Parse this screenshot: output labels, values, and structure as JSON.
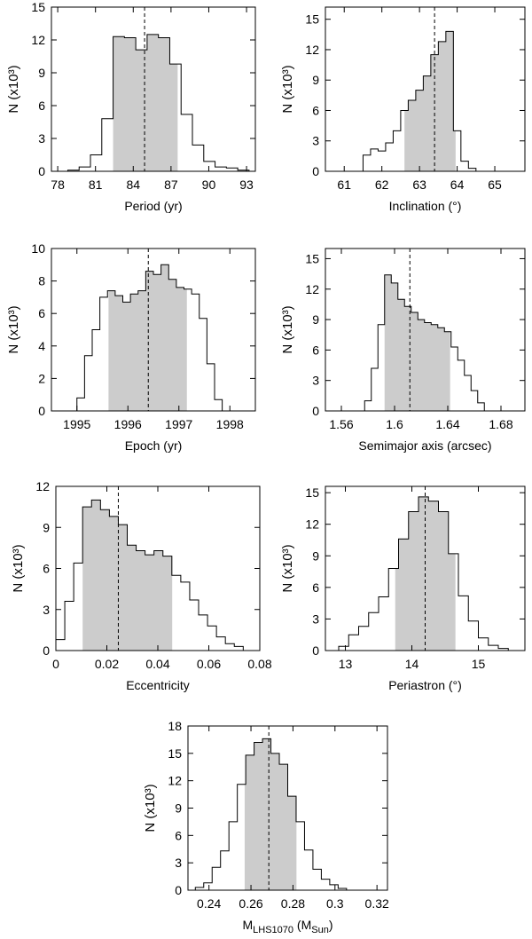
{
  "ylabel": "N (x10³)",
  "chart_data": [
    {
      "type": "bar",
      "xlabel": "Period (yr)",
      "ylabel": "N (x10³)",
      "xlim": [
        77.5,
        93.7
      ],
      "ylim": [
        0,
        15
      ],
      "xticks": [
        78,
        81,
        84,
        87,
        90,
        93
      ],
      "xtick_labels": [
        "78",
        "81",
        "84",
        "87",
        "90",
        "93"
      ],
      "yticks": [
        0,
        3,
        6,
        9,
        12,
        15
      ],
      "ytick_labels": [
        "0",
        "3",
        "6",
        "9",
        "12",
        "15"
      ],
      "bin_edges": [
        78.8,
        79.7,
        80.6,
        81.5,
        82.4,
        83.3,
        84.2,
        85.1,
        86.0,
        86.9,
        87.8,
        88.7,
        89.6,
        90.5,
        91.4,
        92.3,
        93.2
      ],
      "values": [
        0.1,
        0.4,
        1.5,
        4.8,
        12.3,
        12.2,
        11.1,
        12.5,
        12.2,
        9.8,
        5.2,
        2.4,
        0.9,
        0.4,
        0.3,
        0.1
      ],
      "shade_range": [
        82.4,
        87.5
      ],
      "median": 84.9
    },
    {
      "type": "bar",
      "xlabel": "Inclination (°)",
      "ylabel": "N (x10³)",
      "xlim": [
        60.5,
        65.8
      ],
      "ylim": [
        0,
        16.2
      ],
      "xticks": [
        61,
        62,
        63,
        64,
        65
      ],
      "xtick_labels": [
        "61",
        "62",
        "63",
        "64",
        "65"
      ],
      "yticks": [
        0,
        3,
        6,
        9,
        12,
        15
      ],
      "ytick_labels": [
        "0",
        "3",
        "6",
        "9",
        "12",
        "15"
      ],
      "bin_edges": [
        61.5,
        61.7,
        61.9,
        62.1,
        62.3,
        62.5,
        62.7,
        62.9,
        63.1,
        63.3,
        63.5,
        63.7,
        63.9,
        64.1,
        64.3,
        64.5
      ],
      "values": [
        1.6,
        2.2,
        2.0,
        2.8,
        4.0,
        6.0,
        7.0,
        8.0,
        9.4,
        11.5,
        12.8,
        13.8,
        4.0,
        1.0,
        0.3
      ],
      "shade_range": [
        62.6,
        63.95
      ],
      "median": 63.4
    },
    {
      "type": "bar",
      "xlabel": "Epoch (yr)",
      "ylabel": "N (x10³)",
      "xlim": [
        1994.5,
        1998.5
      ],
      "ylim": [
        0,
        10
      ],
      "xticks": [
        1995,
        1996,
        1997,
        1998
      ],
      "xtick_labels": [
        "1995",
        "1996",
        "1997",
        "1998"
      ],
      "yticks": [
        0,
        2,
        4,
        6,
        8,
        10
      ],
      "ytick_labels": [
        "0",
        "2",
        "4",
        "6",
        "8",
        "10"
      ],
      "bin_edges": [
        1995.0,
        1995.15,
        1995.3,
        1995.45,
        1995.6,
        1995.75,
        1995.9,
        1996.05,
        1996.2,
        1996.35,
        1996.5,
        1996.65,
        1996.8,
        1996.95,
        1997.1,
        1997.25,
        1997.4,
        1997.55,
        1997.7,
        1997.85
      ],
      "values": [
        0.8,
        3.4,
        5.0,
        7.0,
        7.4,
        7.1,
        6.7,
        7.2,
        7.4,
        8.6,
        8.4,
        9.0,
        8.1,
        7.6,
        7.5,
        7.2,
        5.7,
        2.9,
        0.7
      ],
      "shade_range": [
        1995.62,
        1997.15
      ],
      "median": 1996.4
    },
    {
      "type": "bar",
      "xlabel": "Semimajor axis (arcsec)",
      "ylabel": "N (x10³)",
      "xlim": [
        1.548,
        1.698
      ],
      "ylim": [
        0,
        16
      ],
      "xticks": [
        1.56,
        1.6,
        1.64,
        1.68
      ],
      "xtick_labels": [
        "1.56",
        "1.6",
        "1.64",
        "1.68"
      ],
      "yticks": [
        0,
        3,
        6,
        9,
        12,
        15
      ],
      "ytick_labels": [
        "0",
        "3",
        "6",
        "9",
        "12",
        "15"
      ],
      "bin_edges": [
        1.5775,
        1.5825,
        1.5875,
        1.5925,
        1.5975,
        1.6025,
        1.6075,
        1.6125,
        1.6175,
        1.6225,
        1.6275,
        1.6325,
        1.6375,
        1.6425,
        1.6475,
        1.6525,
        1.6575,
        1.6625,
        1.6675
      ],
      "values": [
        1.0,
        4.2,
        8.5,
        13.4,
        12.6,
        11.0,
        10.3,
        9.7,
        9.0,
        8.7,
        8.5,
        8.2,
        7.8,
        6.3,
        5.0,
        3.5,
        2.0,
        0.8
      ],
      "shade_range": [
        1.5925,
        1.6415
      ],
      "median": 1.6115
    },
    {
      "type": "bar",
      "xlabel": "Eccentricity",
      "ylabel": "N (x10³)",
      "xlim": [
        0,
        0.08
      ],
      "ylim": [
        0,
        12
      ],
      "xticks": [
        0,
        0.02,
        0.04,
        0.06,
        0.08
      ],
      "xtick_labels": [
        "0",
        "0.02",
        "0.04",
        "0.06",
        "0.08"
      ],
      "yticks": [
        0,
        3,
        6,
        9,
        12
      ],
      "ytick_labels": [
        "0",
        "3",
        "6",
        "9",
        "12"
      ],
      "bin_edges": [
        0.0,
        0.0035,
        0.007,
        0.0105,
        0.014,
        0.0175,
        0.021,
        0.0245,
        0.028,
        0.0315,
        0.035,
        0.0385,
        0.042,
        0.0455,
        0.049,
        0.0525,
        0.056,
        0.0595,
        0.063,
        0.0665,
        0.07,
        0.0735
      ],
      "values": [
        0.8,
        3.6,
        6.4,
        10.5,
        11.0,
        10.3,
        9.8,
        9.2,
        7.7,
        7.3,
        7.0,
        7.3,
        6.9,
        5.5,
        5.0,
        3.7,
        2.6,
        1.8,
        1.0,
        0.5,
        0.3
      ],
      "shade_range": [
        0.0105,
        0.0455
      ],
      "median": 0.0245
    },
    {
      "type": "bar",
      "xlabel": "Periastron (°)",
      "ylabel": "N (x10³)",
      "xlim": [
        12.7,
        15.7
      ],
      "ylim": [
        0,
        15.6
      ],
      "xticks": [
        13,
        14,
        15
      ],
      "xtick_labels": [
        "13",
        "14",
        "15"
      ],
      "yticks": [
        0,
        3,
        6,
        9,
        12,
        15
      ],
      "ytick_labels": [
        "0",
        "3",
        "6",
        "9",
        "12",
        "15"
      ],
      "bin_edges": [
        12.9,
        13.05,
        13.2,
        13.35,
        13.5,
        13.65,
        13.8,
        13.95,
        14.1,
        14.25,
        14.4,
        14.55,
        14.7,
        14.85,
        15.0,
        15.15,
        15.3,
        15.45
      ],
      "values": [
        0.4,
        1.5,
        2.3,
        3.6,
        5.1,
        7.8,
        10.6,
        13.2,
        14.6,
        14.2,
        13.2,
        9.2,
        5.2,
        2.8,
        1.2,
        0.5,
        0.2
      ],
      "shade_range": [
        13.75,
        14.65
      ],
      "median": 14.2
    },
    {
      "type": "bar",
      "xlabel": "M",
      "xlabel_sub": "LHS1070",
      "xlabel_mid": " (M",
      "xlabel_sub2": "Sun",
      "xlabel_end": ")",
      "ylabel": "N (x10³)",
      "xlim": [
        0.23,
        0.325
      ],
      "ylim": [
        0,
        18
      ],
      "xticks": [
        0.24,
        0.26,
        0.28,
        0.3,
        0.32
      ],
      "xtick_labels": [
        "0.24",
        "0.26",
        "0.28",
        "0.3",
        "0.32"
      ],
      "yticks": [
        0,
        3,
        6,
        9,
        12,
        15,
        18
      ],
      "ytick_labels": [
        "0",
        "3",
        "6",
        "9",
        "12",
        "15",
        "18"
      ],
      "bin_edges": [
        0.2335,
        0.2375,
        0.2415,
        0.2455,
        0.2495,
        0.2535,
        0.2575,
        0.2615,
        0.2655,
        0.2695,
        0.2735,
        0.2775,
        0.2815,
        0.2855,
        0.2895,
        0.2935,
        0.2975,
        0.3015,
        0.3055
      ],
      "values": [
        0.3,
        0.8,
        2.5,
        4.3,
        7.5,
        11.6,
        14.8,
        16.2,
        16.6,
        15.0,
        13.8,
        10.3,
        7.5,
        4.4,
        2.3,
        1.2,
        0.6,
        0.2
      ],
      "shade_range": [
        0.257,
        0.2815
      ],
      "median": 0.2685
    }
  ]
}
